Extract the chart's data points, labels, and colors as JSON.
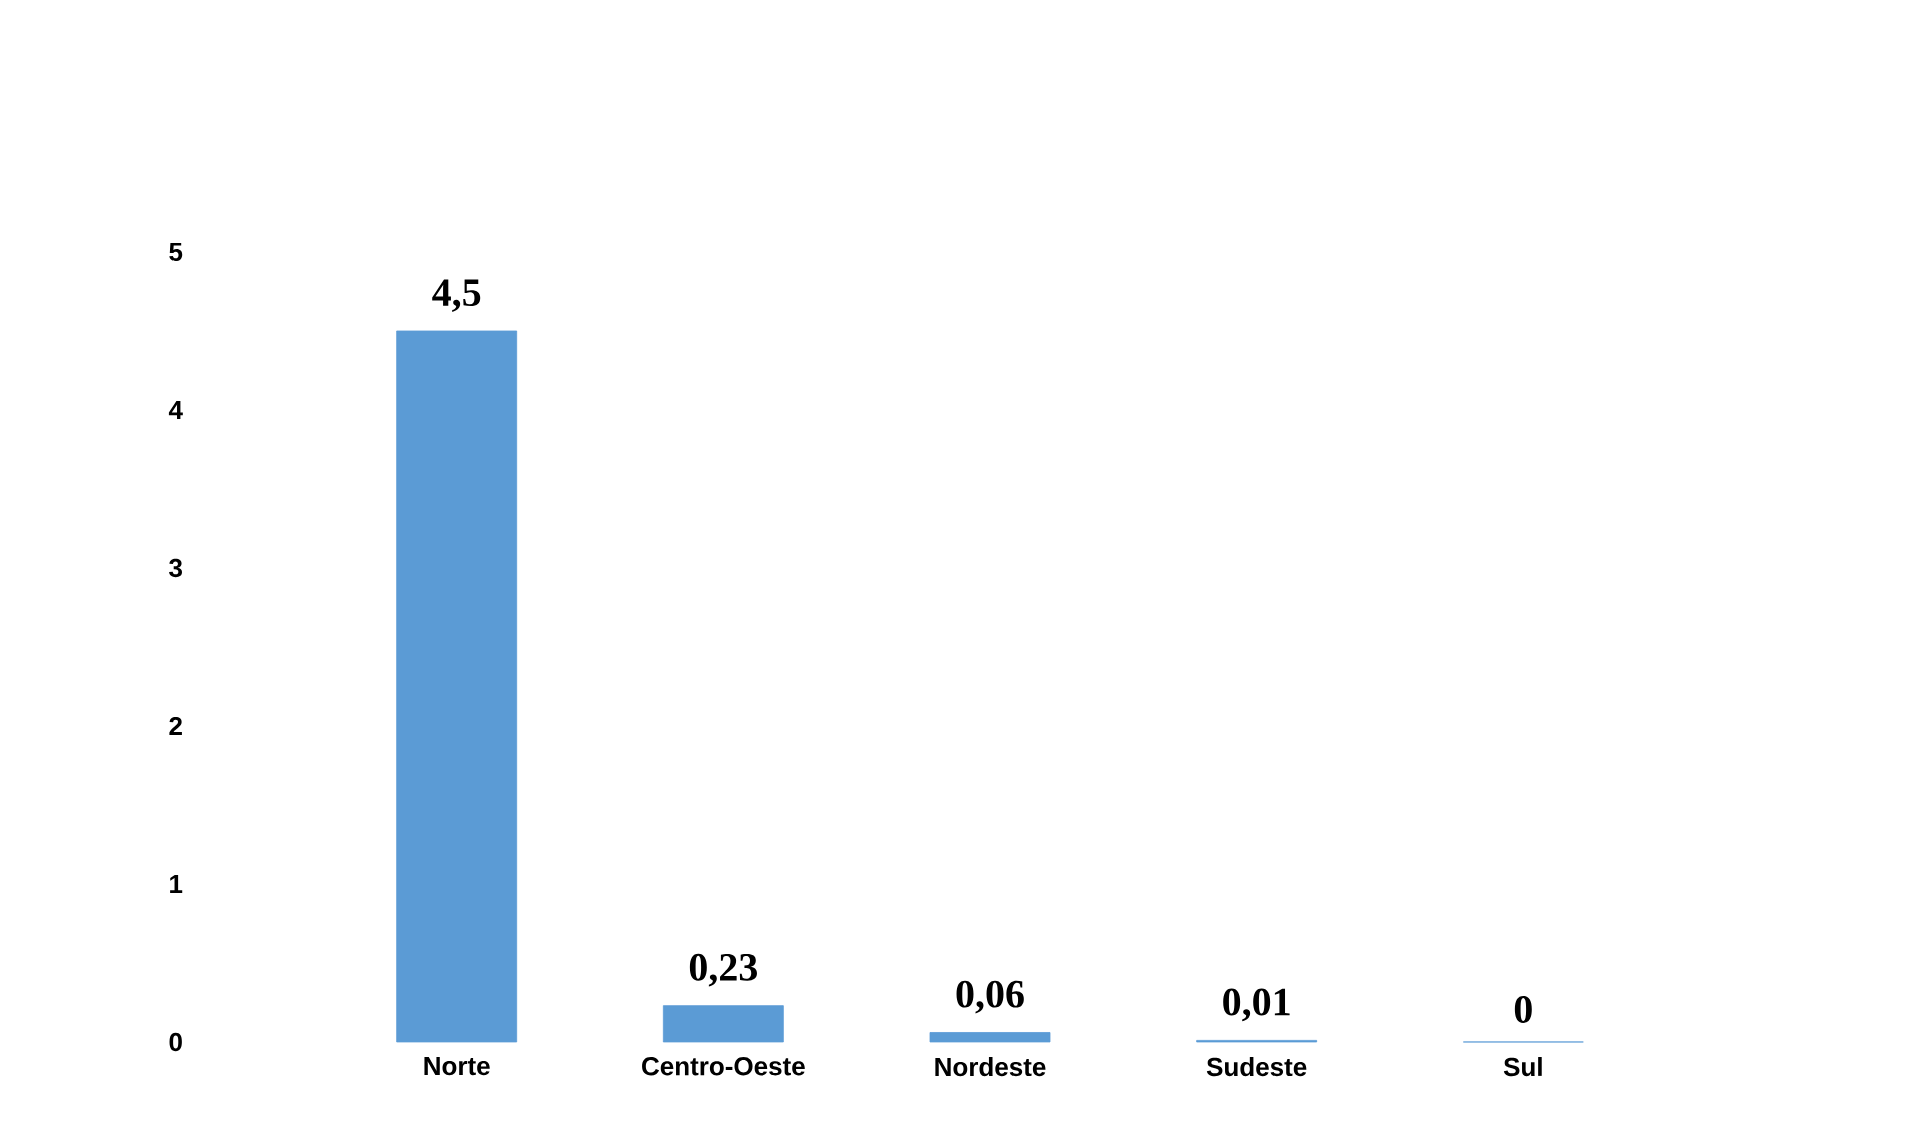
{
  "chart_data": {
    "type": "bar",
    "categories": [
      "Norte",
      "Centro-Oeste",
      "Nordeste",
      "Sudeste",
      "Sul"
    ],
    "values": [
      4.5,
      0.23,
      0.06,
      0.01,
      0
    ],
    "value_labels": [
      "4,5",
      "0,23",
      "0,06",
      "0,01",
      "0"
    ],
    "color": "#5b9bd5",
    "ylim": [
      0,
      5
    ],
    "yticks": [
      0,
      1,
      2,
      3,
      4,
      5
    ],
    "grid": false
  }
}
